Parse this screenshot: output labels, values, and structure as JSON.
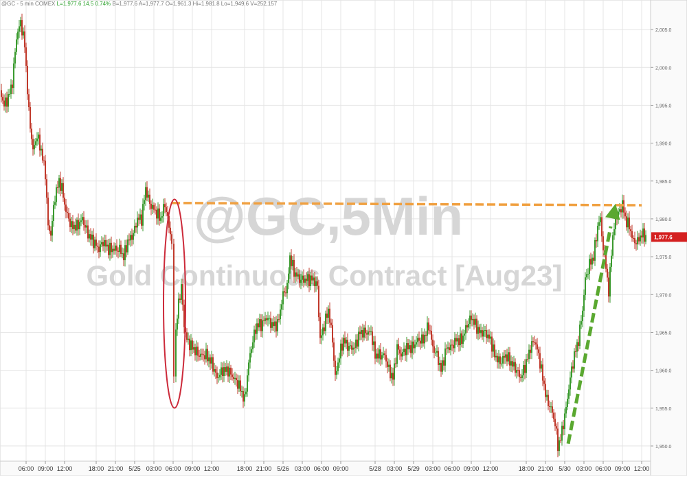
{
  "header": {
    "symbol": "@GC - 5 min",
    "exchange": "COMEX",
    "last": "L=1,977.6",
    "change": "14.5",
    "change_pct": "0.74%",
    "bid": "B=1,977.6",
    "ask": "A=1,977.7",
    "open": "O=1,961.3",
    "high": "Hi=1,981.8",
    "low": "Lo=1,949.6",
    "volume": "V=252,157"
  },
  "watermark": {
    "title": "@GC,5Min",
    "subtitle": "Gold Continuous Contract [Aug23]"
  },
  "price_tag": {
    "text": "1,977.6",
    "value": 1977.6
  },
  "colors": {
    "up": "#3a9a2e",
    "down": "#c0392b",
    "header_green": "#2aa02a",
    "resistance_line": "#f0a040",
    "ellipse": "#cc2a3a",
    "arrow": "#5aa830",
    "price_tag_bg": "#d42020",
    "grid": "#e4e4e4"
  },
  "chart_data": {
    "type": "line",
    "title": "@GC,5Min",
    "subtitle": "Gold Continuous Contract [Aug23]",
    "xlabel": "",
    "ylabel": "",
    "ylim": [
      1948,
      2008
    ],
    "grid": true,
    "x_ticks": [
      "06:00",
      "09:00",
      "12:00",
      "18:00",
      "21:00",
      "5/25",
      "03:00",
      "06:00",
      "09:00",
      "12:00",
      "18:00",
      "21:00",
      "5/26",
      "03:00",
      "06:00",
      "09:00",
      "5/28",
      "03:00",
      "5/29",
      "03:00",
      "06:00",
      "09:00",
      "12:00",
      "18:00",
      "21:00",
      "5/30",
      "03:00",
      "06:00",
      "09:00",
      "12:00"
    ],
    "y_ticks": [
      "2,005.0",
      "2,000.0",
      "1,995.0",
      "1,990.0",
      "1,985.0",
      "1,980.0",
      "1,975.0",
      "1,970.0",
      "1,965.0",
      "1,960.0",
      "1,955.0",
      "1,950.0"
    ],
    "series": [
      {
        "values": [
          [
            0,
            1997
          ],
          [
            6,
            1995
          ],
          [
            12,
            1996
          ],
          [
            18,
            1998
          ],
          [
            24,
            2004
          ],
          [
            30,
            2006
          ],
          [
            36,
            2003
          ],
          [
            42,
            1994
          ],
          [
            48,
            1989
          ],
          [
            54,
            1991
          ],
          [
            60,
            1989
          ],
          [
            66,
            1986
          ],
          [
            70,
            1979
          ],
          [
            74,
            1978
          ],
          [
            80,
            1983
          ],
          [
            86,
            1985
          ],
          [
            90,
            1984
          ],
          [
            96,
            1981
          ],
          [
            104,
            1979
          ],
          [
            112,
            1979
          ],
          [
            120,
            1980
          ],
          [
            128,
            1978
          ],
          [
            136,
            1977
          ],
          [
            144,
            1976
          ],
          [
            150,
            1977
          ],
          [
            158,
            1976
          ],
          [
            166,
            1976
          ],
          [
            174,
            1976
          ],
          [
            180,
            1975
          ],
          [
            186,
            1977
          ],
          [
            194,
            1978
          ],
          [
            200,
            1980
          ],
          [
            206,
            1980
          ],
          [
            212,
            1984
          ],
          [
            218,
            1982
          ],
          [
            226,
            1981
          ],
          [
            234,
            1980
          ],
          [
            240,
            1982
          ],
          [
            246,
            1979
          ],
          [
            250,
            1977
          ],
          [
            253,
            1959
          ],
          [
            256,
            1965
          ],
          [
            260,
            1969
          ],
          [
            264,
            1971
          ],
          [
            268,
            1966
          ],
          [
            272,
            1964
          ],
          [
            280,
            1963
          ],
          [
            290,
            1962
          ],
          [
            300,
            1962
          ],
          [
            308,
            1961
          ],
          [
            316,
            1959
          ],
          [
            324,
            1960
          ],
          [
            332,
            1960
          ],
          [
            340,
            1959
          ],
          [
            348,
            1958
          ],
          [
            356,
            1956
          ],
          [
            362,
            1961
          ],
          [
            368,
            1964
          ],
          [
            374,
            1966
          ],
          [
            380,
            1966
          ],
          [
            388,
            1967
          ],
          [
            396,
            1966
          ],
          [
            404,
            1966
          ],
          [
            412,
            1970
          ],
          [
            418,
            1971
          ],
          [
            422,
            1975
          ],
          [
            428,
            1973
          ],
          [
            436,
            1972
          ],
          [
            446,
            1972
          ],
          [
            456,
            1972
          ],
          [
            462,
            1971
          ],
          [
            466,
            1964
          ],
          [
            472,
            1966
          ],
          [
            478,
            1968
          ],
          [
            484,
            1964
          ],
          [
            488,
            1959
          ],
          [
            494,
            1962
          ],
          [
            500,
            1964
          ],
          [
            508,
            1963
          ],
          [
            516,
            1963
          ],
          [
            524,
            1965
          ],
          [
            532,
            1965
          ],
          [
            540,
            1965
          ],
          [
            546,
            1962
          ],
          [
            552,
            1962
          ],
          [
            560,
            1962
          ],
          [
            566,
            1960
          ],
          [
            572,
            1959
          ],
          [
            578,
            1963
          ],
          [
            584,
            1962
          ],
          [
            592,
            1963
          ],
          [
            600,
            1963
          ],
          [
            608,
            1964
          ],
          [
            616,
            1964
          ],
          [
            624,
            1966
          ],
          [
            630,
            1963
          ],
          [
            636,
            1962
          ],
          [
            642,
            1960
          ],
          [
            650,
            1963
          ],
          [
            656,
            1963
          ],
          [
            664,
            1964
          ],
          [
            672,
            1964
          ],
          [
            680,
            1966
          ],
          [
            686,
            1967
          ],
          [
            692,
            1966
          ],
          [
            698,
            1965
          ],
          [
            706,
            1965
          ],
          [
            714,
            1964
          ],
          [
            720,
            1962
          ],
          [
            728,
            1961
          ],
          [
            736,
            1962
          ],
          [
            744,
            1961
          ],
          [
            752,
            1960
          ],
          [
            758,
            1959
          ],
          [
            766,
            1961
          ],
          [
            772,
            1963
          ],
          [
            778,
            1964
          ],
          [
            784,
            1962
          ],
          [
            790,
            1959
          ],
          [
            796,
            1956
          ],
          [
            802,
            1955
          ],
          [
            808,
            1953
          ],
          [
            812,
            1950
          ],
          [
            816,
            1951
          ],
          [
            820,
            1953
          ],
          [
            824,
            1955
          ],
          [
            830,
            1959
          ],
          [
            836,
            1962
          ],
          [
            842,
            1964
          ],
          [
            848,
            1968
          ],
          [
            852,
            1972
          ],
          [
            858,
            1974
          ],
          [
            864,
            1975
          ],
          [
            870,
            1979
          ],
          [
            874,
            1980
          ],
          [
            878,
            1976
          ],
          [
            882,
            1974
          ],
          [
            886,
            1970
          ],
          [
            890,
            1976
          ],
          [
            896,
            1980
          ],
          [
            902,
            1981
          ],
          [
            906,
            1982
          ],
          [
            910,
            1980
          ],
          [
            916,
            1979
          ],
          [
            922,
            1977
          ],
          [
            928,
            1977
          ],
          [
            934,
            1978
          ],
          [
            940,
            1977.6
          ]
        ]
      }
    ],
    "annotations": [
      "dashed resistance line at 1,982.0",
      "ellipse around 5/25 06:00 flash drop",
      "dashed upward arrow from 5/30 low to high"
    ]
  }
}
